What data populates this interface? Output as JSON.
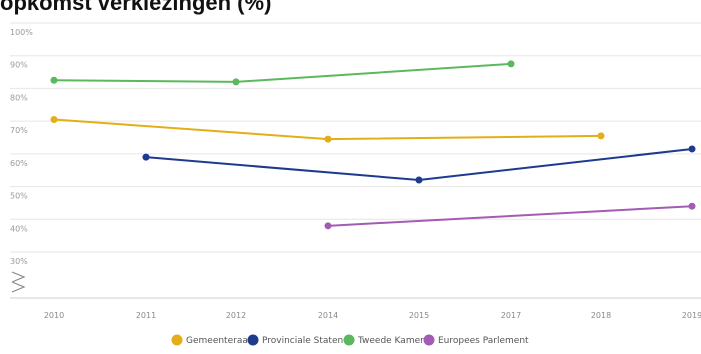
{
  "chart_data": {
    "type": "line",
    "title": "opkomst verkiezingen (%)",
    "x_labels": [
      "2010",
      "2011",
      "2012",
      "2014",
      "2015",
      "2017",
      "2018",
      "2019"
    ],
    "y_ticks": [
      "100%",
      "90%",
      "80%",
      "70%",
      "60%",
      "50%",
      "40%",
      "30%"
    ],
    "ylim": [
      25,
      100
    ],
    "grid": true,
    "legend_position": "bottom",
    "series": [
      {
        "name": "Gemeenteraad",
        "color": "#e3ae17",
        "points": [
          [
            "2010",
            70.5
          ],
          [
            "2014",
            64.5
          ],
          [
            "2018",
            65.5
          ]
        ]
      },
      {
        "name": "Provinciale Staten",
        "color": "#1e3a8f",
        "points": [
          [
            "2011",
            59
          ],
          [
            "2015",
            52
          ],
          [
            "2019",
            61.5
          ]
        ]
      },
      {
        "name": "Tweede Kamer",
        "color": "#5cb85c",
        "points": [
          [
            "2010",
            82.5
          ],
          [
            "2012",
            82
          ],
          [
            "2017",
            87.5
          ]
        ]
      },
      {
        "name": "Europees Parlement",
        "color": "#a35bb3",
        "points": [
          [
            "2014",
            38
          ],
          [
            "2019",
            44
          ]
        ]
      }
    ]
  }
}
